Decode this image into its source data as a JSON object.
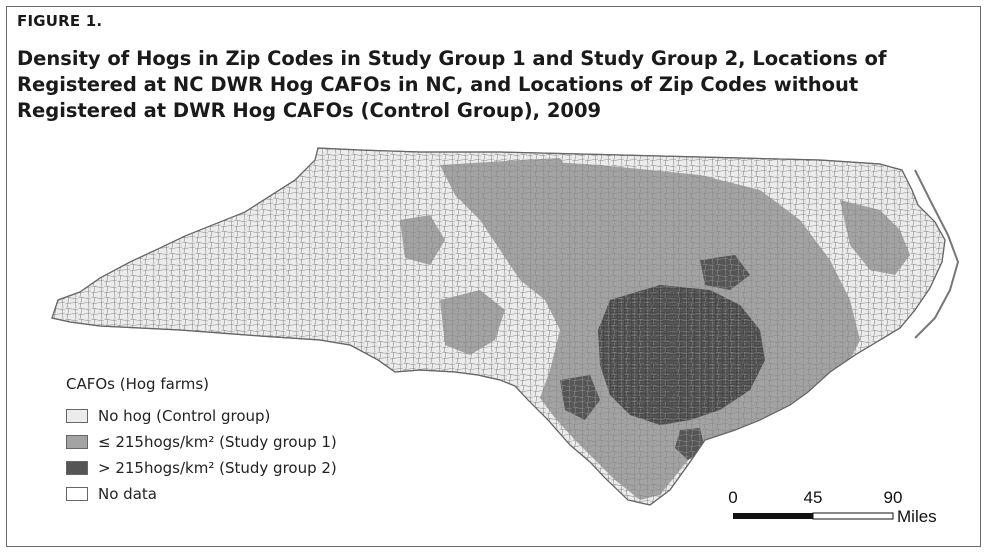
{
  "figure": {
    "label": "FIGURE 1.",
    "title": "Density of Hogs in Zip Codes in Study Group 1 and Study Group 2, Locations of Registered at NC DWR Hog CAFOs in NC, and Locations of Zip Codes without Registered at DWR Hog CAFOs (Control Group), 2009"
  },
  "legend": {
    "title": "CAFOs (Hog farms)",
    "items": [
      {
        "label": "No hog (Control group)",
        "color": "#ececec"
      },
      {
        "label": "≤ 215hogs/km² (Study group 1)",
        "color": "#a3a3a3"
      },
      {
        "label": "> 215hogs/km² (Study group 2)",
        "color": "#555555"
      },
      {
        "label": "No data",
        "color": "#ffffff"
      }
    ]
  },
  "scale_bar": {
    "ticks": [
      "0",
      "45",
      "90"
    ],
    "unit": "Miles"
  },
  "colors": {
    "control": "#ececec",
    "study1": "#a3a3a3",
    "study2": "#555555",
    "nodata": "#ffffff",
    "border": "#7a7a7a"
  }
}
